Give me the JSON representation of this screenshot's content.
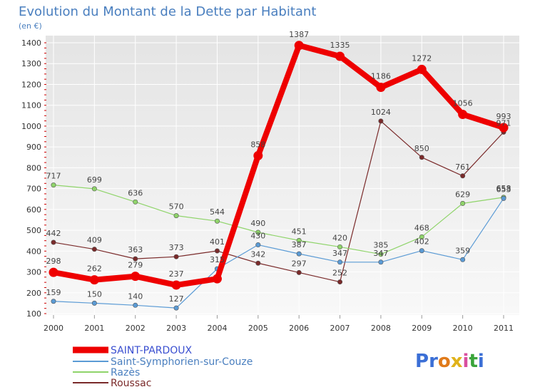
{
  "chart_data": {
    "type": "line",
    "title": "Evolution du Montant de la Dette par Habitant",
    "subtitle": "(en €)",
    "xlabel": "",
    "ylabel": "",
    "x": [
      "2000",
      "2001",
      "2002",
      "2003",
      "2004",
      "2005",
      "2006",
      "2007",
      "2008",
      "2009",
      "2010",
      "2011"
    ],
    "ylim": [
      100,
      1400
    ],
    "yticks": [
      100,
      200,
      300,
      400,
      500,
      600,
      700,
      800,
      900,
      1000,
      1100,
      1200,
      1300,
      1400
    ],
    "grid": true,
    "legend_position": "bottom-left",
    "series": [
      {
        "name": "SAINT-PARDOUX",
        "color": "#ee0000",
        "values": [
          298,
          262,
          279,
          237,
          267,
          858,
          1387,
          1335,
          1186,
          1272,
          1056,
          993
        ],
        "labels": [
          "298",
          "262",
          "279",
          "237",
          "",
          "858",
          "1387",
          "1335",
          "1186",
          "1272",
          "1056",
          "993"
        ]
      },
      {
        "name": "Saint-Symphorien-sur-Couze",
        "color": "#5b9bd5",
        "values": [
          159,
          150,
          140,
          127,
          315,
          430,
          387,
          347,
          347,
          402,
          359,
          653
        ],
        "labels": [
          "159",
          "150",
          "140",
          "127",
          "315",
          "430",
          "387",
          "347",
          "347",
          "402",
          "359",
          "653"
        ]
      },
      {
        "name": "Razès",
        "color": "#8fd46a",
        "values": [
          717,
          699,
          636,
          570,
          544,
          490,
          451,
          420,
          385,
          468,
          629,
          658
        ],
        "labels": [
          "717",
          "699",
          "636",
          "570",
          "544",
          "490",
          "451",
          "420",
          "385",
          "468",
          "629",
          "658"
        ]
      },
      {
        "name": "Roussac",
        "color": "#7a2a2a",
        "values": [
          442,
          409,
          363,
          373,
          401,
          342,
          297,
          252,
          1024,
          850,
          761,
          971
        ],
        "labels": [
          "442",
          "409",
          "363",
          "373",
          "401",
          "342",
          "297",
          "252",
          "1024",
          "850",
          "761",
          "971"
        ]
      }
    ]
  },
  "logo": {
    "text": "Proxiti"
  }
}
